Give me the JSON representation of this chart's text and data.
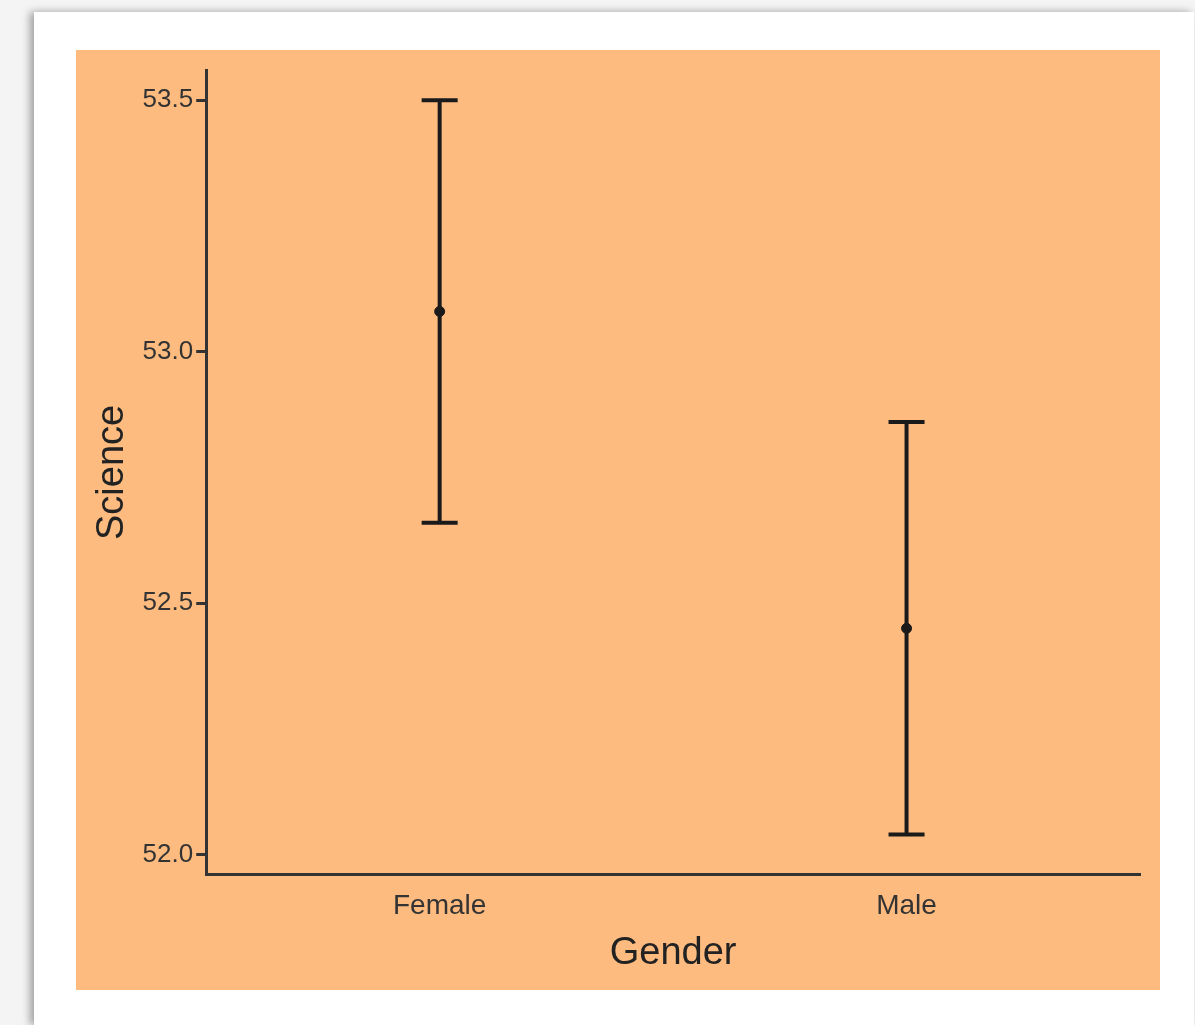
{
  "chart_data": {
    "type": "scatter",
    "xlabel": "Gender",
    "ylabel": "Science",
    "categories": [
      "Female",
      "Male"
    ],
    "values": [
      53.08,
      52.45
    ],
    "errors": [
      0.42,
      0.41
    ],
    "color": "#1a1a1a",
    "marker": "circle",
    "ylim": [
      51.96,
      53.56
    ],
    "yticks": [
      {
        "value": 52,
        "label": "52.0"
      },
      52.5,
      {
        "value": 53,
        "label": "53.0"
      },
      53.5
    ],
    "grid": false,
    "legend": false
  }
}
